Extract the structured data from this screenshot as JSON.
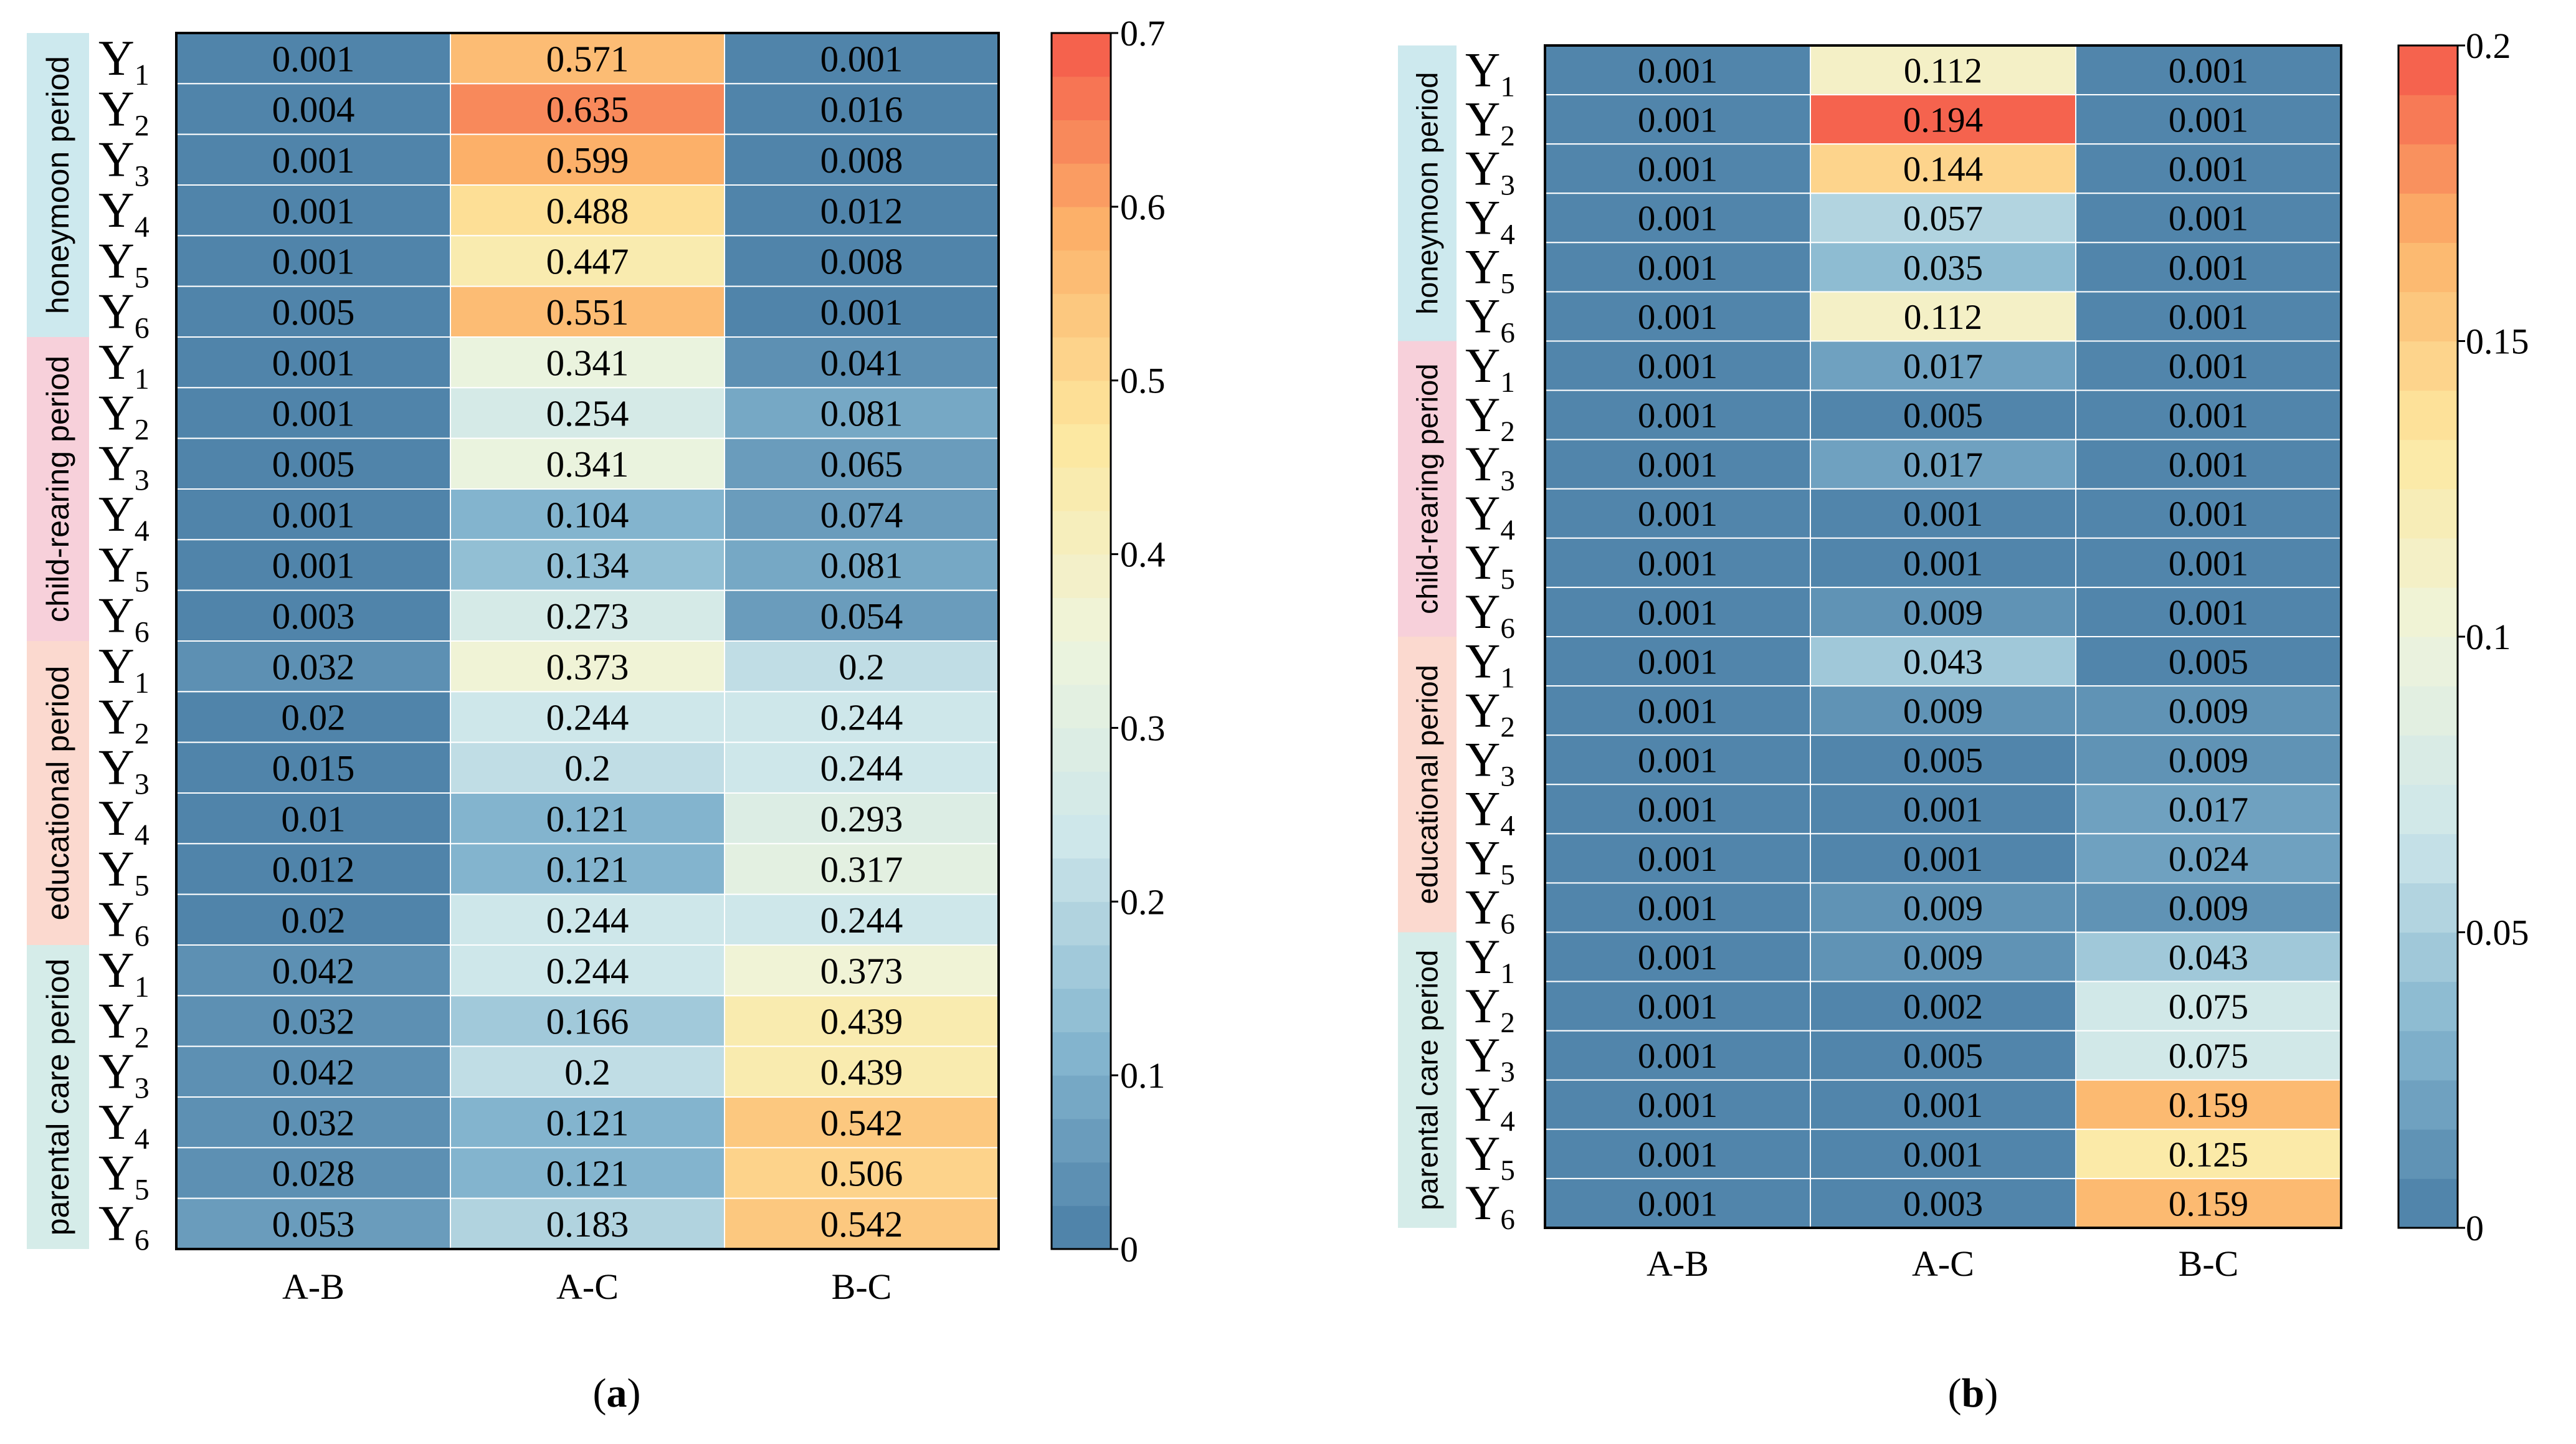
{
  "chart_data": [
    {
      "type": "heatmap",
      "panel_label": "a",
      "columns": [
        "A-B",
        "A-C",
        "B-C"
      ],
      "groups": [
        "honeymoon period",
        "child-rearing period",
        "educational period",
        "parental care period"
      ],
      "row_labels": [
        "Y1",
        "Y2",
        "Y3",
        "Y4",
        "Y5",
        "Y6"
      ],
      "values": [
        [
          "0.001",
          "0.571",
          "0.001"
        ],
        [
          "0.004",
          "0.635",
          "0.016"
        ],
        [
          "0.001",
          "0.599",
          "0.008"
        ],
        [
          "0.001",
          "0.488",
          "0.012"
        ],
        [
          "0.001",
          "0.447",
          "0.008"
        ],
        [
          "0.005",
          "0.551",
          "0.001"
        ],
        [
          "0.001",
          "0.341",
          "0.041"
        ],
        [
          "0.001",
          "0.254",
          "0.081"
        ],
        [
          "0.005",
          "0.341",
          "0.065"
        ],
        [
          "0.001",
          "0.104",
          "0.074"
        ],
        [
          "0.001",
          "0.134",
          "0.081"
        ],
        [
          "0.003",
          "0.273",
          "0.054"
        ],
        [
          "0.032",
          "0.373",
          "0.2"
        ],
        [
          "0.02",
          "0.244",
          "0.244"
        ],
        [
          "0.015",
          "0.2",
          "0.244"
        ],
        [
          "0.01",
          "0.121",
          "0.293"
        ],
        [
          "0.012",
          "0.121",
          "0.317"
        ],
        [
          "0.02",
          "0.244",
          "0.244"
        ],
        [
          "0.042",
          "0.244",
          "0.373"
        ],
        [
          "0.032",
          "0.166",
          "0.439"
        ],
        [
          "0.042",
          "0.2",
          "0.439"
        ],
        [
          "0.032",
          "0.121",
          "0.542"
        ],
        [
          "0.028",
          "0.121",
          "0.506"
        ],
        [
          "0.053",
          "0.183",
          "0.542"
        ]
      ],
      "colorbar": {
        "min": 0,
        "max": 0.7,
        "ticks": [
          "0",
          "0.1",
          "0.2",
          "0.3",
          "0.4",
          "0.5",
          "0.6",
          "0.7"
        ],
        "levels": 28
      }
    },
    {
      "type": "heatmap",
      "panel_label": "b",
      "columns": [
        "A-B",
        "A-C",
        "B-C"
      ],
      "groups": [
        "honeymoon period",
        "child-rearing period",
        "educational period",
        "parental care period"
      ],
      "row_labels": [
        "Y1",
        "Y2",
        "Y3",
        "Y4",
        "Y5",
        "Y6"
      ],
      "values": [
        [
          "0.001",
          "0.112",
          "0.001"
        ],
        [
          "0.001",
          "0.194",
          "0.001"
        ],
        [
          "0.001",
          "0.144",
          "0.001"
        ],
        [
          "0.001",
          "0.057",
          "0.001"
        ],
        [
          "0.001",
          "0.035",
          "0.001"
        ],
        [
          "0.001",
          "0.112",
          "0.001"
        ],
        [
          "0.001",
          "0.017",
          "0.001"
        ],
        [
          "0.001",
          "0.005",
          "0.001"
        ],
        [
          "0.001",
          "0.017",
          "0.001"
        ],
        [
          "0.001",
          "0.001",
          "0.001"
        ],
        [
          "0.001",
          "0.001",
          "0.001"
        ],
        [
          "0.001",
          "0.009",
          "0.001"
        ],
        [
          "0.001",
          "0.043",
          "0.005"
        ],
        [
          "0.001",
          "0.009",
          "0.009"
        ],
        [
          "0.001",
          "0.005",
          "0.009"
        ],
        [
          "0.001",
          "0.001",
          "0.017"
        ],
        [
          "0.001",
          "0.001",
          "0.024"
        ],
        [
          "0.001",
          "0.009",
          "0.009"
        ],
        [
          "0.001",
          "0.009",
          "0.043"
        ],
        [
          "0.001",
          "0.002",
          "0.075"
        ],
        [
          "0.001",
          "0.005",
          "0.075"
        ],
        [
          "0.001",
          "0.001",
          "0.159"
        ],
        [
          "0.001",
          "0.001",
          "0.125"
        ],
        [
          "0.001",
          "0.003",
          "0.159"
        ]
      ],
      "colorbar": {
        "min": 0,
        "max": 0.2,
        "ticks": [
          "0",
          "0.05",
          "0.1",
          "0.15",
          "0.2"
        ],
        "levels": 24
      }
    }
  ],
  "colors": {
    "scale": [
      "#4a7ea6",
      "#85b6cf",
      "#cde6ea",
      "#eef4dc",
      "#fde8a0",
      "#fcb36a",
      "#f4584a"
    ],
    "group_label_bg": [
      "#cde9ee",
      "#f7d0da",
      "#fbd9cf",
      "#d5ece9"
    ],
    "text": "#000000",
    "border": "#000000"
  }
}
